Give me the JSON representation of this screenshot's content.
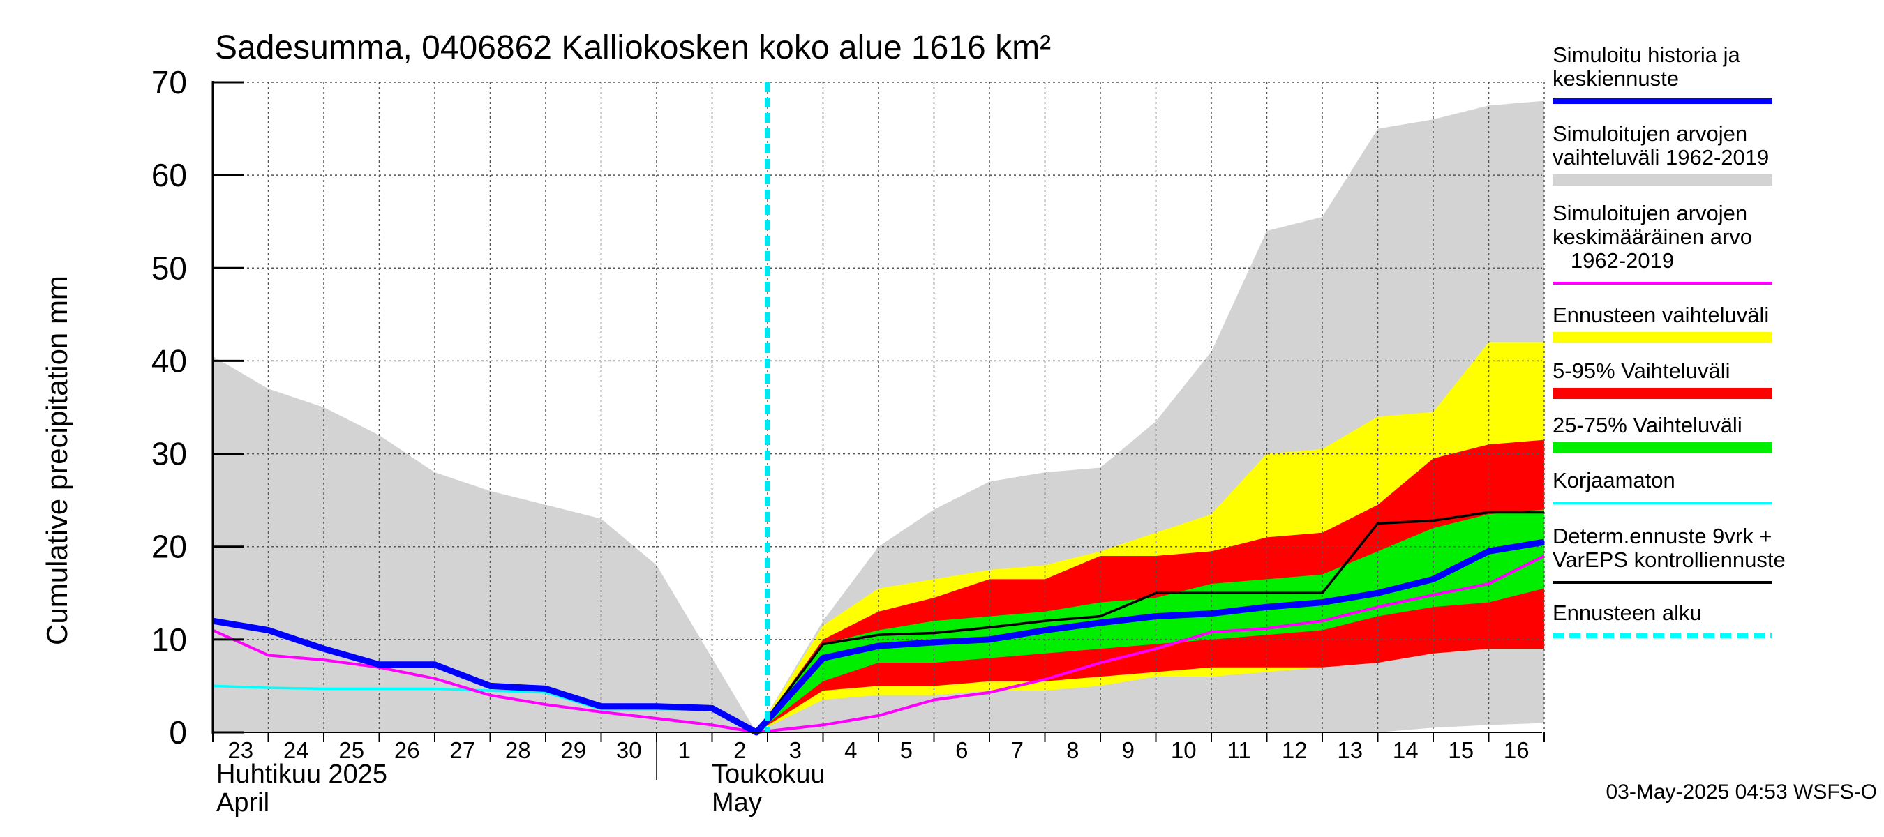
{
  "chart_data": {
    "type": "area",
    "title": "Sadesumma, 0406862 Kalliokosken koko alue 1616 km²",
    "ylabel": "Cumulative precipitation   mm",
    "ylim": [
      0,
      70
    ],
    "yticks": [
      0,
      10,
      20,
      30,
      40,
      50,
      60,
      70
    ],
    "grid": true,
    "legend_position": "right",
    "x_tick_labels": [
      "23",
      "24",
      "25",
      "26",
      "27",
      "28",
      "29",
      "30",
      "1",
      "2",
      "3",
      "4",
      "5",
      "6",
      "7",
      "8",
      "9",
      "10",
      "11",
      "12",
      "13",
      "14",
      "15",
      "16"
    ],
    "month_labels": [
      {
        "line1": "Huhtikuu  2025",
        "line2": "April"
      },
      {
        "line1": "Toukokuu",
        "line2": "May"
      }
    ],
    "x_days": [
      "Apr 23",
      "Apr 24",
      "Apr 25",
      "Apr 26",
      "Apr 27",
      "Apr 28",
      "Apr 29",
      "Apr 30",
      "May 1",
      "May 2",
      "May 3",
      "May 4",
      "May 5",
      "May 6",
      "May 7",
      "May 8",
      "May 9",
      "May 10",
      "May 11",
      "May 12",
      "May 13",
      "May 14",
      "May 15",
      "May 16",
      "May 17"
    ],
    "forecast_start": "May 3 (06:00)",
    "bands": {
      "historical_range": {
        "x": [
          "Apr 23",
          "Apr 24",
          "Apr 25",
          "Apr 26",
          "Apr 27",
          "Apr 28",
          "Apr 29",
          "Apr 30",
          "May 1",
          "May 2",
          "May 2.8",
          "May 4",
          "May 5",
          "May 6",
          "May 7",
          "May 8",
          "May 9",
          "May 10",
          "May 11",
          "May 12",
          "May 13",
          "May 14",
          "May 15",
          "May 16",
          "May 17"
        ],
        "upper": [
          40.5,
          37,
          35,
          32,
          28,
          26,
          24.5,
          23,
          18,
          8,
          0,
          12,
          20,
          24,
          27,
          28,
          28.5,
          33.5,
          41,
          54,
          55.5,
          65,
          66,
          67.5,
          68
        ],
        "lower": [
          0,
          0,
          0,
          0,
          0,
          0,
          0,
          0,
          0,
          0,
          0,
          0,
          0,
          0,
          0,
          0,
          0,
          0,
          0,
          0,
          0,
          0,
          0.5,
          0.8,
          1
        ]
      },
      "forecast_range": {
        "x": [
          "May 2.8",
          "May 4",
          "May 5",
          "May 6",
          "May 7",
          "May 8",
          "May 9",
          "May 10",
          "May 11",
          "May 12",
          "May 13",
          "May 14",
          "May 15",
          "May 16",
          "May 17"
        ],
        "upper": [
          0,
          11.5,
          15.5,
          16.5,
          17.5,
          18,
          19.5,
          21.5,
          23.5,
          30,
          30.5,
          34,
          34.5,
          42,
          42
        ],
        "lower": [
          0,
          3.5,
          4,
          4,
          4.5,
          4.5,
          5,
          6,
          6,
          6.5,
          7,
          8,
          8.5,
          9,
          9
        ]
      },
      "p5_p95": {
        "x": [
          "May 2.8",
          "May 4",
          "May 5",
          "May 6",
          "May 7",
          "May 8",
          "May 9",
          "May 10",
          "May 11",
          "May 12",
          "May 13",
          "May 14",
          "May 15",
          "May 16",
          "May 17"
        ],
        "upper": [
          0,
          10,
          13,
          14.5,
          16.5,
          16.5,
          19,
          19,
          19.5,
          21,
          21.5,
          24.5,
          29.5,
          31,
          31.5
        ],
        "lower": [
          0,
          4.5,
          5,
          5,
          5.5,
          5.5,
          6,
          6.5,
          7,
          7,
          7,
          7.5,
          8.5,
          9,
          9
        ]
      },
      "p25_p75": {
        "x": [
          "May 2.8",
          "May 4",
          "May 5",
          "May 6",
          "May 7",
          "May 8",
          "May 9",
          "May 10",
          "May 11",
          "May 12",
          "May 13",
          "May 14",
          "May 15",
          "May 16",
          "May 17"
        ],
        "upper": [
          0,
          9.5,
          11,
          12,
          12.5,
          13,
          14,
          14.5,
          16,
          16.5,
          17,
          19.5,
          22,
          23.5,
          24
        ],
        "lower": [
          0,
          5.5,
          7.5,
          7.5,
          8,
          8.5,
          9,
          9.5,
          10,
          10.5,
          11,
          12.5,
          13.5,
          14,
          15.5
        ]
      }
    },
    "series": [
      {
        "name": "Simuloitu historia ja keskiennuste",
        "color": "#0000ff",
        "x": [
          "Apr 23",
          "Apr 24",
          "Apr 25",
          "Apr 26",
          "Apr 27",
          "Apr 28",
          "Apr 29",
          "Apr 30",
          "May 1",
          "May 2",
          "May 2.8",
          "May 4",
          "May 5",
          "May 6",
          "May 7",
          "May 8",
          "May 9",
          "May 10",
          "May 11",
          "May 12",
          "May 13",
          "May 14",
          "May 15",
          "May 16",
          "May 17"
        ],
        "y": [
          12,
          11,
          9,
          7.3,
          7.3,
          5,
          4.7,
          2.8,
          2.8,
          2.6,
          0,
          8,
          9.3,
          9.7,
          10,
          11,
          11.8,
          12.5,
          12.8,
          13.5,
          14,
          15,
          16.5,
          19.5,
          20.5
        ]
      },
      {
        "name": "Simuloitujen arvojen keskimääräinen arvo 1962-2019",
        "color": "#ff00ff",
        "x": [
          "Apr 23",
          "Apr 24",
          "Apr 25",
          "Apr 26",
          "Apr 27",
          "Apr 28",
          "Apr 29",
          "Apr 30",
          "May 1",
          "May 2",
          "May 2.8",
          "May 4",
          "May 5",
          "May 6",
          "May 7",
          "May 8",
          "May 9",
          "May 10",
          "May 11",
          "May 12",
          "May 13",
          "May 14",
          "May 15",
          "May 16",
          "May 17"
        ],
        "y": [
          11,
          8.3,
          7.8,
          7,
          5.8,
          4,
          3,
          2.2,
          1.5,
          0.8,
          0,
          0.8,
          1.8,
          3.5,
          4.3,
          5.7,
          7.5,
          9,
          10.8,
          11.2,
          12,
          13.5,
          14.8,
          16,
          19
        ]
      },
      {
        "name": "Korjaamaton",
        "color": "#00ffff",
        "x": [
          "Apr 23",
          "Apr 24",
          "Apr 25",
          "Apr 26",
          "Apr 27",
          "Apr 28",
          "Apr 29",
          "Apr 30",
          "May 1",
          "May 2",
          "May 2.8"
        ],
        "y": [
          5,
          4.8,
          4.7,
          4.7,
          4.7,
          4.5,
          4.3,
          2.5,
          2.5,
          2.5,
          0
        ]
      },
      {
        "name": "Determ.ennuste 9vrk + VarEPS kontrolliennuste",
        "color": "#000000",
        "x": [
          "May 2.8",
          "May 4",
          "May 5",
          "May 6",
          "May 7",
          "May 8",
          "May 9",
          "May 10",
          "May 11",
          "May 12",
          "May 13",
          "May 14",
          "May 15",
          "May 16",
          "May 17"
        ],
        "y": [
          0,
          9.5,
          10.5,
          10.7,
          11.3,
          12,
          12.5,
          15,
          15,
          15,
          15,
          22.5,
          22.8,
          23.7,
          23.7
        ]
      }
    ],
    "legend": [
      {
        "id": "hist",
        "lines": [
          "Simuloitu historia ja",
          "keskiennuste"
        ],
        "color": "#0000ff",
        "kind": "line"
      },
      {
        "id": "range",
        "lines": [
          "Simuloitujen arvojen",
          "vaihteluväli 1962-2019"
        ],
        "color": "#d3d3d3",
        "kind": "band"
      },
      {
        "id": "mean",
        "lines": [
          "Simuloitujen arvojen",
          "keskimääräinen arvo",
          "   1962-2019"
        ],
        "color": "#ff00ff",
        "kind": "line"
      },
      {
        "id": "fcrange",
        "lines": [
          "Ennusteen vaihteluväli"
        ],
        "color": "#ffff00",
        "kind": "band"
      },
      {
        "id": "p595",
        "lines": [
          "5-95% Vaihteluväli"
        ],
        "color": "#ff0000",
        "kind": "band"
      },
      {
        "id": "p2575",
        "lines": [
          "25-75% Vaihteluväli"
        ],
        "color": "#00ee00",
        "kind": "band"
      },
      {
        "id": "raw",
        "lines": [
          "Korjaamaton"
        ],
        "color": "#00ffff",
        "kind": "line"
      },
      {
        "id": "determ",
        "lines": [
          "Determ.ennuste 9vrk +",
          "VarEPS kontrolliennuste"
        ],
        "color": "#000000",
        "kind": "line"
      },
      {
        "id": "start",
        "lines": [
          "Ennusteen alku"
        ],
        "color": "#00ffff",
        "kind": "dashed"
      }
    ],
    "footer": "03-May-2025 04:53 WSFS-O"
  }
}
